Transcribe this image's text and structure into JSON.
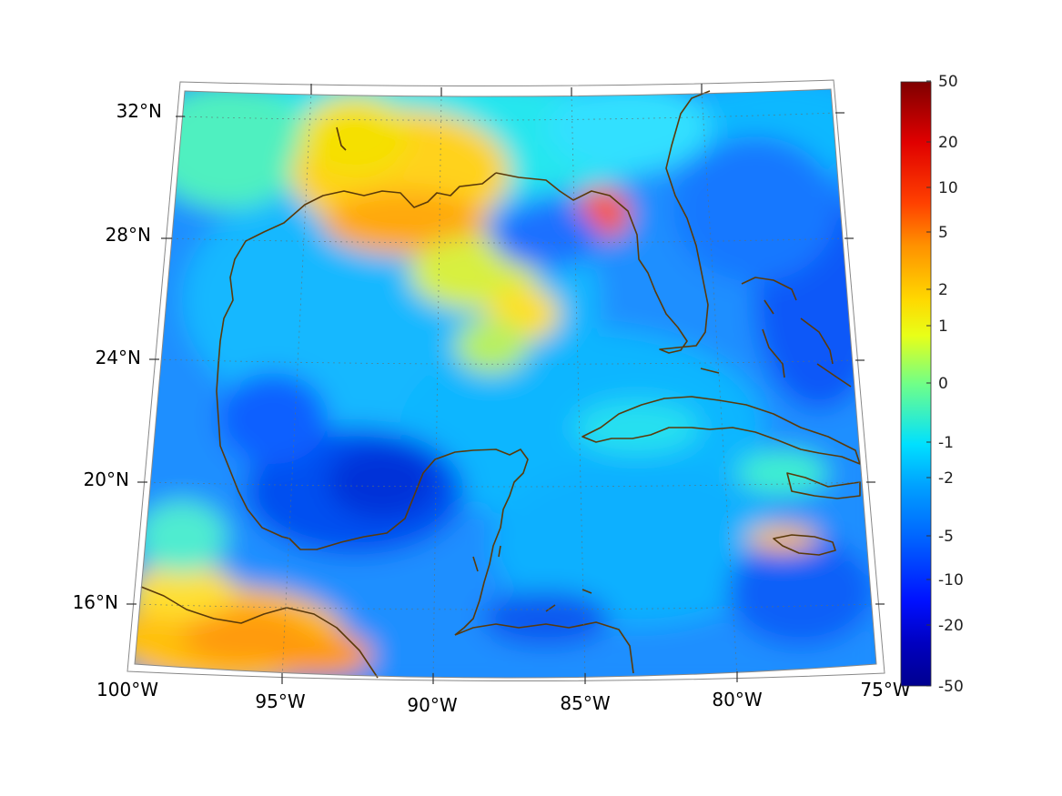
{
  "map": {
    "projection": "conic",
    "region": "Gulf of Mexico and Caribbean",
    "lon_range": [
      -100,
      -75
    ],
    "lat_range": [
      14,
      33
    ],
    "lon_labels": [
      "100°W",
      "95°W",
      "90°W",
      "85°W",
      "80°W",
      "75°W"
    ],
    "lat_labels": [
      "32°N",
      "28°N",
      "24°N",
      "20°N",
      "16°N"
    ],
    "graticule": "dotted",
    "coastline_color": "#5a3a0a"
  },
  "colorbar": {
    "colormap": "jet",
    "ticks": [
      "50",
      "20",
      "10",
      "5",
      "2",
      "1",
      "0",
      "-1",
      "-2",
      "-5",
      "-10",
      "-20",
      "-50"
    ],
    "range": [
      -50,
      50
    ]
  },
  "field_features": [
    {
      "area": "Louisiana / Mississippi coast",
      "level": "2 to 5"
    },
    {
      "area": "Florida Big Bend",
      "level": "5 to 10"
    },
    {
      "area": "Gulf of Tehuantepec / Guatemala",
      "level": "2 to 5"
    },
    {
      "area": "Bay of Campeche",
      "level": "-10 to -5"
    },
    {
      "area": "Jamaica",
      "level": "2 to 5"
    },
    {
      "area": "open Gulf",
      "level": "-5 to -1"
    }
  ]
}
